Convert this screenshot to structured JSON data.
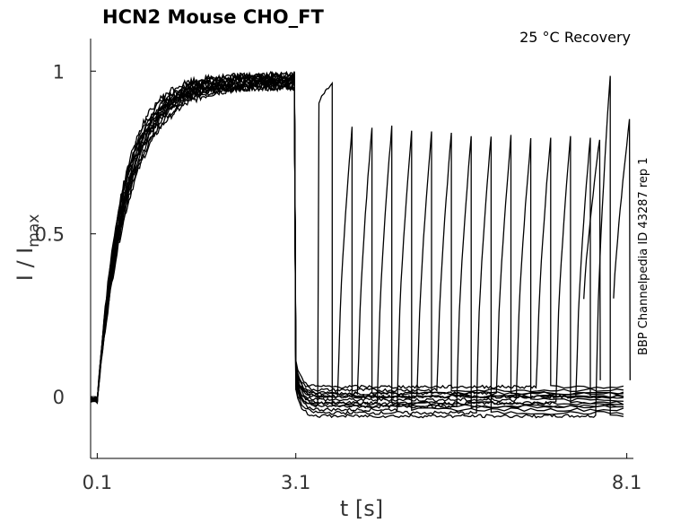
{
  "chart_data": {
    "type": "line",
    "title": "HCN2  Mouse  CHO_FT",
    "condition": "25 °C  Recovery",
    "xlabel": "t [s]",
    "ylabel_main": "I / I",
    "ylabel_sub": "max",
    "side_note": "BBP Channelpedia ID 43287 rep 1",
    "xlim": [
      0.0,
      8.2
    ],
    "ylim": [
      -0.19,
      1.1
    ],
    "x_ticks": [
      0.1,
      3.1,
      8.1
    ],
    "x_tick_labels": [
      "0.1",
      "3.1",
      "8.1"
    ],
    "y_ticks": [
      0,
      0.5,
      1
    ],
    "y_tick_labels": [
      "0",
      "0.5",
      "1"
    ],
    "grid": false,
    "legend": "none",
    "activation": {
      "t_start": 0.1,
      "t_end": 3.1,
      "start_level": -0.01,
      "plateau": [
        0.95,
        0.99
      ],
      "tau": 0.42
    },
    "recovery_peaks": [
      0.96,
      0.83,
      0.83,
      0.83,
      0.82,
      0.81,
      0.81,
      0.8,
      0.8,
      0.8,
      0.79,
      0.8,
      0.8,
      0.8,
      0.99
    ],
    "tail_traces": [
      0.81,
      0.87
    ]
  }
}
